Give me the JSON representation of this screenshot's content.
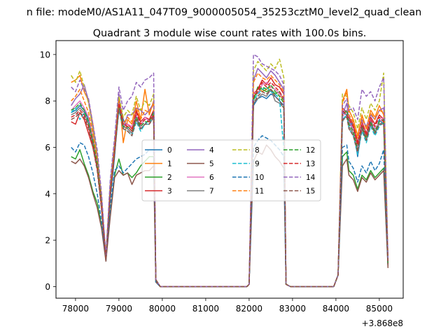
{
  "chart_data": {
    "type": "line",
    "suptitle": "n file: modeM0/AS1A11_047T09_9000005054_35253cztM0_level2_quad_clean",
    "title": "Quadrant 3 module wise count rates with 100.0s bins.",
    "xlabel": "",
    "ylabel": "",
    "offset_text": "+3.868e8",
    "xlim": [
      77550,
      85550
    ],
    "ylim": [
      -0.5,
      10.6
    ],
    "xticks": [
      78000,
      79000,
      80000,
      81000,
      82000,
      83000,
      84000,
      85000
    ],
    "xtick_labels": [
      "78000",
      "79000",
      "80000",
      "81000",
      "82000",
      "83000",
      "84000",
      "85000"
    ],
    "yticks": [
      0,
      2,
      4,
      6,
      8,
      10
    ],
    "ytick_labels": [
      "0",
      "2",
      "4",
      "6",
      "8",
      "10"
    ],
    "legend": {
      "placement": "center",
      "columns": 4
    },
    "gap_x": [
      79950,
      80050,
      80150,
      80250,
      80350,
      80450,
      80550,
      80650,
      80750,
      80850,
      80950,
      81050,
      81150,
      81250,
      81350,
      81450,
      81550,
      81650,
      81750,
      81850,
      81950,
      82950,
      83050,
      83150,
      83250,
      83350,
      83450,
      83550,
      83650,
      83750,
      83850,
      83950
    ],
    "segments": [
      {
        "x": [
          77900,
          78000,
          78100,
          78200,
          78300,
          78400,
          78500,
          78600,
          78700,
          78800,
          78900,
          79000,
          79100,
          79200,
          79300,
          79400,
          79500,
          79600,
          79700,
          79800,
          79850
        ]
      },
      {
        "x": [
          82000,
          82100,
          82200,
          82300,
          82400,
          82500,
          82600,
          82700,
          82800,
          82850
        ]
      },
      {
        "x": [
          84050,
          84150,
          84250,
          84300,
          84400,
          84500,
          84600,
          84700,
          84800,
          84900,
          85000,
          85100,
          85200
        ]
      }
    ],
    "series": [
      {
        "name": "0",
        "color": "#1f77b4",
        "dash": "solid",
        "seg": [
          [
            7.5,
            7.6,
            7.8,
            7.6,
            7.2,
            6.2,
            5.5,
            3.5,
            1.1,
            3.8,
            5.6,
            8.0,
            7.2,
            6.8,
            6.6,
            7.4,
            6.8,
            7.0,
            7.2,
            7.4,
            0.3
          ],
          [
            0.1,
            7.8,
            8.1,
            8.2,
            8.1,
            8.3,
            8.2,
            8.0,
            7.8,
            0.1
          ],
          [
            0.5,
            7.5,
            7.4,
            7.2,
            6.9,
            5.6,
            6.9,
            6.3,
            7.1,
            6.6,
            7.2,
            7.0,
            1.0
          ]
        ]
      },
      {
        "name": "1",
        "color": "#ff7f0e",
        "dash": "solid",
        "seg": [
          [
            8.8,
            8.9,
            9.1,
            8.4,
            8.0,
            7.0,
            5.6,
            3.8,
            1.2,
            4.0,
            5.8,
            8.3,
            6.2,
            7.2,
            7.0,
            8.0,
            7.2,
            8.5,
            7.4,
            8.0,
            0.3
          ],
          [
            0.1,
            8.1,
            8.6,
            8.4,
            8.5,
            8.6,
            8.5,
            8.3,
            8.0,
            0.1
          ],
          [
            0.5,
            8.0,
            8.5,
            7.6,
            7.2,
            6.5,
            7.4,
            6.8,
            7.6,
            7.3,
            7.8,
            7.4,
            1.1
          ]
        ]
      },
      {
        "name": "2",
        "color": "#2ca02c",
        "dash": "solid",
        "seg": [
          [
            5.6,
            5.5,
            5.9,
            5.3,
            4.8,
            4.1,
            3.6,
            2.6,
            1.2,
            3.1,
            4.8,
            5.5,
            4.8,
            4.9,
            4.7,
            4.9,
            5.2,
            5.4,
            5.6,
            5.6,
            0.2
          ],
          [
            0.1,
            8.0,
            8.6,
            8.5,
            8.4,
            8.5,
            8.3,
            8.4,
            8.0,
            0.1
          ],
          [
            0.5,
            5.6,
            5.8,
            5.0,
            4.8,
            4.2,
            4.8,
            4.6,
            5.0,
            4.7,
            4.9,
            5.1,
            0.9
          ]
        ]
      },
      {
        "name": "3",
        "color": "#d62728",
        "dash": "solid",
        "seg": [
          [
            7.1,
            7.0,
            7.5,
            7.2,
            6.6,
            6.0,
            5.1,
            3.5,
            1.2,
            4.1,
            5.9,
            8.2,
            7.0,
            7.0,
            6.8,
            7.6,
            7.1,
            7.3,
            7.2,
            7.6,
            0.3
          ],
          [
            0.1,
            8.3,
            8.5,
            8.9,
            8.7,
            9.0,
            8.7,
            8.6,
            8.3,
            0.1
          ],
          [
            0.5,
            7.7,
            7.5,
            7.3,
            7.0,
            6.2,
            7.1,
            6.6,
            7.3,
            7.0,
            7.4,
            7.2,
            1.0
          ]
        ]
      },
      {
        "name": "4",
        "color": "#9467bd",
        "dash": "solid",
        "seg": [
          [
            7.8,
            8.1,
            8.3,
            8.7,
            8.0,
            6.8,
            5.7,
            3.8,
            1.3,
            4.4,
            6.2,
            8.3,
            6.8,
            7.4,
            7.4,
            7.7,
            7.6,
            7.4,
            7.6,
            7.9,
            0.3
          ],
          [
            0.1,
            8.9,
            9.4,
            9.2,
            9.0,
            9.3,
            9.1,
            8.8,
            8.5,
            0.1
          ],
          [
            0.5,
            7.4,
            7.9,
            7.1,
            6.8,
            6.0,
            7.2,
            6.9,
            7.4,
            7.2,
            7.6,
            7.7,
            1.1
          ]
        ]
      },
      {
        "name": "5",
        "color": "#8c564b",
        "dash": "solid",
        "seg": [
          [
            5.4,
            5.3,
            5.5,
            5.2,
            4.7,
            4.0,
            3.4,
            2.5,
            1.1,
            3.0,
            4.7,
            5.0,
            4.8,
            4.9,
            4.4,
            4.8,
            4.9,
            5.0,
            5.0,
            5.2,
            0.2
          ],
          [
            0.1,
            5.4,
            5.8,
            5.7,
            6.1,
            5.9,
            5.6,
            5.4,
            5.1,
            0.1
          ],
          [
            0.5,
            5.2,
            5.5,
            4.8,
            4.6,
            4.1,
            4.7,
            4.5,
            4.9,
            4.6,
            4.8,
            5.0,
            0.8
          ]
        ]
      },
      {
        "name": "6",
        "color": "#e377c2",
        "dash": "solid",
        "seg": [
          [
            7.6,
            7.8,
            8.0,
            7.7,
            7.3,
            6.5,
            5.4,
            3.6,
            1.2,
            4.2,
            6.0,
            7.9,
            6.9,
            7.0,
            6.9,
            7.4,
            6.9,
            7.3,
            7.1,
            7.5,
            0.3
          ],
          [
            0.1,
            8.4,
            8.3,
            8.7,
            8.8,
            8.6,
            8.5,
            8.3,
            8.1,
            0.1
          ],
          [
            0.5,
            7.3,
            7.6,
            7.0,
            6.8,
            5.9,
            7.0,
            6.5,
            7.2,
            6.8,
            7.1,
            7.3,
            1.0
          ]
        ]
      },
      {
        "name": "7",
        "color": "#7f7f7f",
        "dash": "solid",
        "seg": [
          [
            7.4,
            7.5,
            7.7,
            7.5,
            7.0,
            6.3,
            5.2,
            3.4,
            1.1,
            4.0,
            5.8,
            7.8,
            6.9,
            6.8,
            6.6,
            7.2,
            6.8,
            7.0,
            7.0,
            7.3,
            0.3
          ],
          [
            0.1,
            7.9,
            8.1,
            8.3,
            8.2,
            8.5,
            8.0,
            7.9,
            7.7,
            0.1
          ],
          [
            0.5,
            7.1,
            7.4,
            6.9,
            6.6,
            5.8,
            6.8,
            6.3,
            7.0,
            6.6,
            7.0,
            7.1,
            0.9
          ]
        ]
      },
      {
        "name": "8",
        "color": "#bcbd22",
        "dash": "dashed",
        "seg": [
          [
            9.1,
            8.8,
            9.3,
            8.6,
            7.9,
            6.8,
            5.7,
            3.9,
            1.3,
            4.5,
            6.3,
            8.2,
            7.3,
            7.6,
            7.4,
            8.2,
            7.6,
            8.0,
            7.8,
            8.3,
            0.3
          ],
          [
            0.1,
            9.3,
            9.7,
            9.5,
            9.3,
            9.6,
            9.4,
            9.8,
            9.0,
            0.1
          ],
          [
            0.5,
            8.3,
            8.2,
            7.8,
            7.5,
            6.8,
            7.7,
            7.2,
            7.9,
            7.6,
            8.0,
            9.2,
            1.2
          ]
        ]
      },
      {
        "name": "9",
        "color": "#17becf",
        "dash": "dashed",
        "seg": [
          [
            7.5,
            7.7,
            7.2,
            7.5,
            7.0,
            6.2,
            5.2,
            3.4,
            1.2,
            4.0,
            5.7,
            7.6,
            6.8,
            6.7,
            6.5,
            7.1,
            6.7,
            7.0,
            7.0,
            7.4,
            0.3
          ],
          [
            0.1,
            8.0,
            8.3,
            8.5,
            8.6,
            8.4,
            8.3,
            8.1,
            5.9,
            0.1
          ],
          [
            0.5,
            7.2,
            7.4,
            6.8,
            6.5,
            5.7,
            6.7,
            6.2,
            6.9,
            6.5,
            6.9,
            7.1,
            0.9
          ]
        ]
      },
      {
        "name": "10",
        "color": "#1f77b4",
        "dash": "dashed",
        "seg": [
          [
            6.0,
            5.8,
            6.2,
            6.1,
            5.6,
            4.9,
            4.0,
            2.8,
            1.2,
            3.4,
            5.0,
            5.2,
            4.9,
            5.1,
            5.3,
            5.5,
            5.6,
            5.7,
            5.9,
            5.9,
            0.2
          ],
          [
            0.1,
            6.0,
            6.3,
            6.5,
            6.4,
            6.3,
            6.1,
            5.9,
            5.6,
            0.1
          ],
          [
            0.5,
            6.0,
            6.1,
            5.4,
            5.1,
            4.5,
            5.2,
            4.9,
            5.4,
            5.0,
            5.3,
            5.9,
            0.9
          ]
        ]
      },
      {
        "name": "11",
        "color": "#ff7f0e",
        "dash": "dashed",
        "seg": [
          [
            8.0,
            8.2,
            8.5,
            8.0,
            7.5,
            6.6,
            5.5,
            3.7,
            1.2,
            4.2,
            6.0,
            8.0,
            7.0,
            7.3,
            7.1,
            7.7,
            7.2,
            7.6,
            7.5,
            7.9,
            0.3
          ],
          [
            0.1,
            8.8,
            9.2,
            9.0,
            8.9,
            9.1,
            8.9,
            8.7,
            8.4,
            0.1
          ],
          [
            0.5,
            7.9,
            8.4,
            7.4,
            7.1,
            6.4,
            7.3,
            6.8,
            7.5,
            7.2,
            7.6,
            7.5,
            1.1
          ]
        ]
      },
      {
        "name": "12",
        "color": "#2ca02c",
        "dash": "dashed",
        "seg": [
          [
            7.6,
            7.7,
            7.9,
            7.6,
            7.1,
            6.3,
            5.3,
            3.5,
            1.2,
            4.0,
            5.8,
            7.8,
            6.9,
            6.9,
            6.7,
            7.3,
            6.9,
            7.1,
            7.1,
            7.5,
            0.3
          ],
          [
            0.1,
            8.1,
            8.4,
            8.6,
            8.5,
            8.7,
            8.4,
            8.2,
            7.9,
            0.1
          ],
          [
            0.5,
            7.4,
            7.6,
            7.0,
            6.7,
            5.9,
            6.9,
            6.4,
            7.1,
            6.7,
            7.1,
            7.2,
            1.0
          ]
        ]
      },
      {
        "name": "13",
        "color": "#d62728",
        "dash": "dashed",
        "seg": [
          [
            7.3,
            7.4,
            7.6,
            7.4,
            6.9,
            6.1,
            5.1,
            3.4,
            1.2,
            4.0,
            5.8,
            7.9,
            7.0,
            6.9,
            6.7,
            7.5,
            7.0,
            7.2,
            7.1,
            7.4,
            0.3
          ],
          [
            0.1,
            8.2,
            8.4,
            8.8,
            8.6,
            8.8,
            8.6,
            8.4,
            8.1,
            0.1
          ],
          [
            0.5,
            7.6,
            7.4,
            7.2,
            6.9,
            6.1,
            7.0,
            6.5,
            7.2,
            6.9,
            7.3,
            7.1,
            1.0
          ]
        ]
      },
      {
        "name": "14",
        "color": "#9467bd",
        "dash": "dashed",
        "seg": [
          [
            8.6,
            8.4,
            8.9,
            8.5,
            8.1,
            7.0,
            5.9,
            4.0,
            1.3,
            4.6,
            6.4,
            8.6,
            7.6,
            8.0,
            8.2,
            8.8,
            8.6,
            8.9,
            9.0,
            9.2,
            0.3
          ],
          [
            0.1,
            10.0,
            9.9,
            9.6,
            9.5,
            9.4,
            9.3,
            9.1,
            8.7,
            0.1
          ],
          [
            0.5,
            7.8,
            8.1,
            7.6,
            7.7,
            7.2,
            8.5,
            8.2,
            8.4,
            8.0,
            8.6,
            9.0,
            1.2
          ]
        ]
      },
      {
        "name": "15",
        "color": "#8c564b",
        "dash": "dashed",
        "seg": [
          [
            7.2,
            7.3,
            7.5,
            7.3,
            6.8,
            6.0,
            5.0,
            3.3,
            1.1,
            3.9,
            5.7,
            7.7,
            6.8,
            6.7,
            6.5,
            7.2,
            6.8,
            7.0,
            7.0,
            7.3,
            0.3
          ],
          [
            0.1,
            7.9,
            8.2,
            8.4,
            8.3,
            8.5,
            8.2,
            8.0,
            7.7,
            0.1
          ],
          [
            0.5,
            7.2,
            7.3,
            6.8,
            6.5,
            5.8,
            6.8,
            6.3,
            7.0,
            6.6,
            7.0,
            7.0,
            0.9
          ]
        ]
      }
    ]
  }
}
